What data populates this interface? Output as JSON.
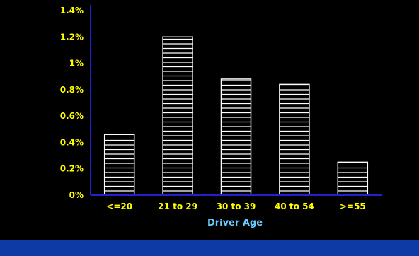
{
  "colors": {
    "background": "#000000",
    "axis": "#2222cc",
    "tick_label": "#ffff00",
    "category_label": "#ffff00",
    "xlabel": "#66ccff",
    "bar_fill": "#000000",
    "bar_stroke": "#ffffff",
    "bar_stripes": "#ffffff",
    "footer": "#0d3aa5"
  },
  "chart_data": {
    "type": "bar",
    "title": "",
    "xlabel": "Driver Age",
    "ylabel": "",
    "categories": [
      "<=20",
      "21 to 29",
      "30 to 39",
      "40 to 54",
      ">=55"
    ],
    "values": [
      0.46,
      1.2,
      0.88,
      0.84,
      0.25
    ],
    "ylim": [
      0,
      1.4
    ],
    "yticks": [
      0,
      0.2,
      0.4,
      0.6,
      0.8,
      1,
      1.2,
      1.4
    ],
    "ytick_labels": [
      "0%",
      "0.2%",
      "0.4%",
      "0.6%",
      "0.8%",
      "1%",
      "1.2%",
      "1.4%"
    ],
    "grid": false,
    "legend": "none",
    "bar_pattern": "horizontal-stripes"
  }
}
